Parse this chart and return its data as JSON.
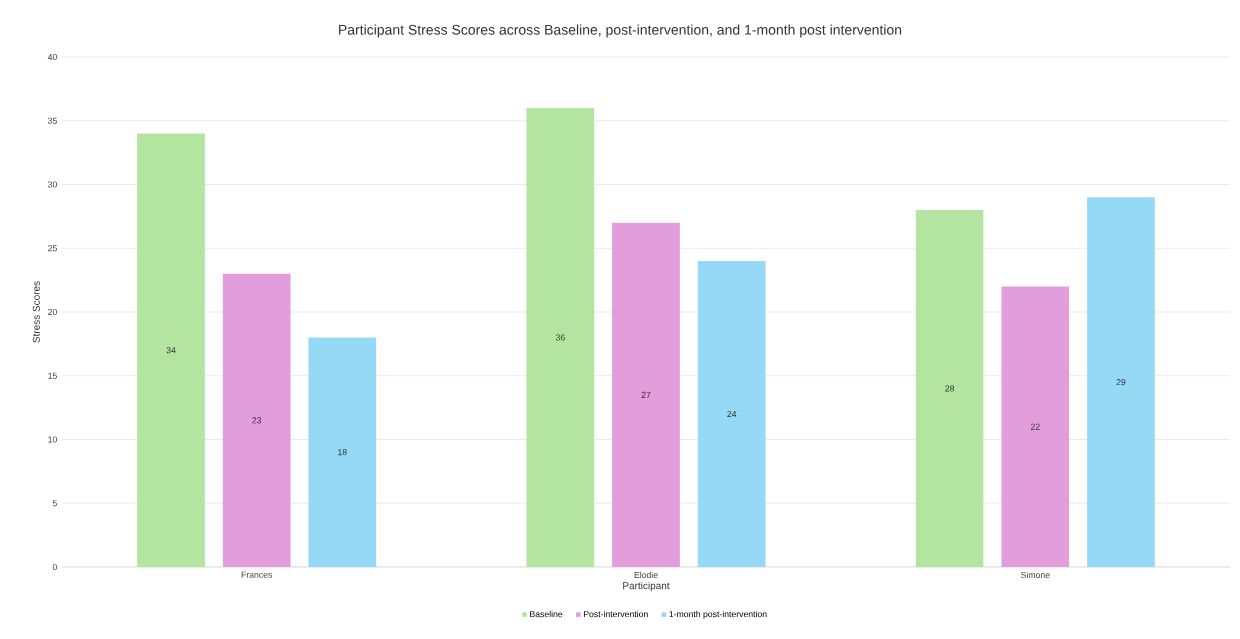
{
  "chart_data": {
    "type": "bar",
    "title": "Participant Stress Scores across Baseline, post-intervention, and 1-month post intervention",
    "xlabel": "Participant",
    "ylabel": "Stress Scores",
    "categories": [
      "Frances",
      "Elodie",
      "Simone"
    ],
    "series": [
      {
        "name": "Baseline",
        "color": "#b3e5a0",
        "values": [
          34,
          36,
          28
        ]
      },
      {
        "name": "Post-intervention",
        "color": "#e29ddd",
        "values": [
          23,
          27,
          22
        ]
      },
      {
        "name": "1-month post-intervention",
        "color": "#95d9f7",
        "values": [
          18,
          24,
          29
        ]
      }
    ],
    "ylim": [
      0,
      40
    ],
    "yticks": [
      0,
      5,
      10,
      15,
      20,
      25,
      30,
      35,
      40
    ],
    "grid": "y",
    "legend": "bottom",
    "data_labels": true
  }
}
